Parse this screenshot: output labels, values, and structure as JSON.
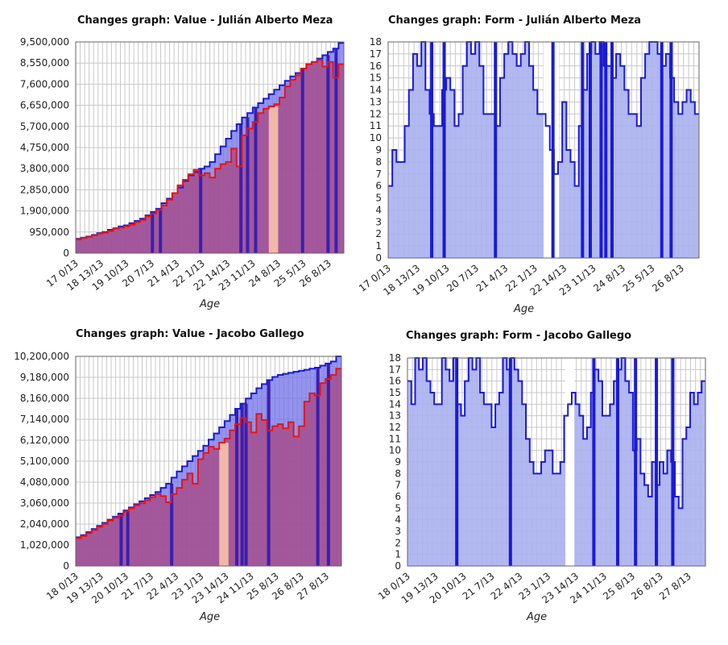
{
  "chart_data": [
    {
      "type": "area",
      "title": "Changes graph: Value - Julián Alberto Meza",
      "xlabel": "Age",
      "ylabel": "",
      "ylim": [
        0,
        9500000
      ],
      "yticks": [
        "9,500,000",
        "8,550,000",
        "7,600,000",
        "6,650,000",
        "5,700,000",
        "4,750,000",
        "3,800,000",
        "2,850,000",
        "1,900,000",
        "950,000",
        "0"
      ],
      "xticks": [
        "17 0/13",
        "18 13/13",
        "19 10/13",
        "20 7/13",
        "21 4/13",
        "22 1/13",
        "22 14/13",
        "23 11/13",
        "24 8/13",
        "25 5/13",
        "26 8/13"
      ],
      "grid": true,
      "colors": {
        "series1": "#1a1ad6",
        "series2": "#e81414",
        "fill": "#a64d8c",
        "gap_fill": "#f0b8a8",
        "drop": "#3a1fb0"
      },
      "series": [
        {
          "values": [
            650000,
            700000,
            750000,
            820000,
            900000,
            950000,
            1050000,
            1120000,
            1200000,
            1250000,
            1350000,
            1450000,
            1550000,
            1700000,
            1850000,
            2000000,
            2250000,
            2450000,
            2700000,
            2950000,
            3250000,
            3500000,
            3650000,
            3800000,
            3900000,
            4100000,
            4450000,
            4800000,
            5150000,
            5500000,
            5800000,
            6100000,
            6300000,
            6550000,
            6750000,
            6950000,
            7150000,
            7350000,
            7550000,
            7750000,
            7950000,
            8100000,
            8300000,
            8500000,
            8600000,
            8750000,
            8900000,
            9050000,
            9200000,
            9450000
          ]
        },
        {
          "values": [
            620000,
            680000,
            730000,
            800000,
            880000,
            920000,
            1000000,
            1100000,
            1150000,
            1200000,
            1280000,
            1400000,
            1480000,
            1650000,
            1780000,
            1950000,
            2150000,
            2400000,
            2700000,
            3050000,
            3300000,
            3550000,
            3750000,
            3500000,
            3600000,
            3400000,
            3800000,
            4000000,
            4100000,
            4700000,
            3900000,
            5300000,
            5600000,
            5900000,
            6300000,
            6500000,
            6600000,
            6700000,
            7000000,
            7500000,
            7800000,
            8000000,
            8300000,
            8500000,
            8600000,
            8700000,
            8400000,
            8600000,
            7900000,
            8500000
          ]
        }
      ],
      "drops": [
        0.28,
        0.31,
        0.46,
        0.61,
        0.635,
        0.665,
        0.84,
        0.935,
        0.965
      ]
    },
    {
      "type": "area",
      "title": "Changes graph: Form - Julián Alberto Meza",
      "xlabel": "Age",
      "ylabel": "",
      "ylim": [
        0,
        18
      ],
      "yticks": [
        "18",
        "17",
        "16",
        "15",
        "14",
        "13",
        "12",
        "11",
        "10",
        "9",
        "8",
        "7",
        "6",
        "5",
        "4",
        "3",
        "2",
        "1",
        "0"
      ],
      "xticks": [
        "17 0/13",
        "18 13/13",
        "19 10/13",
        "20 7/13",
        "21 4/13",
        "22 1/13",
        "22 14/13",
        "23 11/13",
        "24 8/13",
        "25 5/13",
        "26 8/13"
      ],
      "grid": true,
      "colors": {
        "series1": "#1a1ad6",
        "fill": "#aab0ee"
      },
      "series": [
        {
          "values": [
            6,
            9,
            8,
            8,
            11,
            14,
            17,
            16,
            18,
            14,
            12,
            11,
            11,
            14,
            15,
            14,
            11,
            12,
            16,
            18,
            17,
            18,
            16,
            12,
            12,
            12,
            11,
            15,
            17,
            18,
            17,
            16,
            17,
            18,
            16,
            14,
            12,
            12,
            11,
            9,
            7,
            8,
            13,
            9,
            8,
            6,
            11,
            14,
            17,
            18,
            17,
            18,
            16,
            16,
            15,
            17,
            16,
            14,
            12,
            12,
            11,
            15,
            17,
            18,
            18,
            17,
            16,
            17,
            15,
            13,
            12,
            13,
            14,
            13,
            12
          ]
        }
      ],
      "drops": [
        0.135,
        0.175,
        0.34,
        0.525,
        0.62,
        0.645,
        0.68,
        0.695,
        0.715,
        0.875,
        0.905
      ],
      "gaps": [
        [
          0.5,
          0.55
        ]
      ]
    },
    {
      "type": "area",
      "title": "Changes graph: Value - Jacobo Gallego",
      "xlabel": "Age",
      "ylabel": "",
      "ylim": [
        0,
        10200000
      ],
      "yticks": [
        "10,200,000",
        "9,180,000",
        "8,160,000",
        "7,140,000",
        "6,120,000",
        "5,100,000",
        "4,080,000",
        "3,060,000",
        "2,040,000",
        "1,020,000",
        "0"
      ],
      "xticks": [
        "18 0/13",
        "19 13/13",
        "20 10/13",
        "21 7/13",
        "22 4/13",
        "23 1/13",
        "23 14/13",
        "24 11/13",
        "25 8/13",
        "26 8/13",
        "27 8/13"
      ],
      "grid": true,
      "colors": {
        "series1": "#1a1ad6",
        "series2": "#e81414",
        "fill": "#a64d8c",
        "gap_fill": "#f0b8a8",
        "drop": "#3a1fb0"
      },
      "series": [
        {
          "values": [
            1400000,
            1500000,
            1650000,
            1800000,
            1950000,
            2100000,
            2250000,
            2400000,
            2550000,
            2700000,
            2850000,
            3000000,
            3150000,
            3300000,
            3450000,
            3600000,
            3800000,
            4000000,
            4300000,
            4600000,
            4850000,
            5100000,
            5350000,
            5600000,
            5850000,
            6150000,
            6450000,
            6750000,
            7050000,
            7350000,
            7650000,
            7900000,
            8150000,
            8400000,
            8650000,
            8850000,
            9050000,
            9200000,
            9300000,
            9350000,
            9400000,
            9450000,
            9500000,
            9550000,
            9600000,
            9650000,
            9750000,
            9850000,
            9950000,
            10200000
          ]
        },
        {
          "values": [
            1350000,
            1450000,
            1600000,
            1750000,
            1900000,
            2050000,
            2200000,
            2350000,
            2450000,
            2650000,
            2800000,
            2950000,
            3050000,
            3200000,
            3350000,
            3500000,
            3400000,
            3100000,
            3500000,
            3800000,
            4200000,
            4500000,
            4000000,
            5200000,
            5500000,
            5800000,
            5700000,
            6000000,
            6200000,
            6600000,
            6900000,
            7200000,
            7000000,
            6500000,
            7400000,
            7100000,
            6600000,
            6800000,
            6900000,
            6700000,
            7000000,
            6300000,
            6800000,
            8000000,
            8400000,
            8300000,
            8900000,
            9100000,
            9300000,
            9600000
          ]
        }
      ],
      "drops": [
        0.165,
        0.19,
        0.355,
        0.6,
        0.62,
        0.635,
        0.72,
        0.905,
        0.945
      ]
    },
    {
      "type": "area",
      "title": "Changes graph: Form - Jacobo Gallego",
      "xlabel": "Age",
      "ylabel": "",
      "ylim": [
        0,
        18
      ],
      "yticks": [
        "18",
        "17",
        "16",
        "15",
        "14",
        "13",
        "12",
        "11",
        "10",
        "9",
        "8",
        "7",
        "6",
        "5",
        "4",
        "3",
        "2",
        "1",
        "0"
      ],
      "xticks": [
        "18 0/13",
        "19 13/13",
        "20 10/13",
        "21 7/13",
        "22 4/13",
        "23 1/13",
        "23 14/13",
        "24 11/13",
        "25 8/13",
        "26 8/13",
        "27 8/13"
      ],
      "grid": true,
      "colors": {
        "series1": "#1a1ad6",
        "fill": "#aab0ee"
      },
      "series": [
        {
          "values": [
            16,
            14,
            18,
            17,
            18,
            16,
            15,
            14,
            14,
            18,
            17,
            16,
            18,
            14,
            13,
            16,
            18,
            17,
            18,
            15,
            14,
            14,
            12,
            14,
            15,
            18,
            17,
            18,
            17,
            16,
            14,
            11,
            9,
            8,
            8,
            9,
            10,
            10,
            8,
            8,
            9,
            13,
            14,
            15,
            14,
            13,
            11,
            12,
            15,
            17,
            16,
            13,
            13,
            14,
            16,
            17,
            18,
            16,
            15,
            10,
            11,
            8,
            7,
            6,
            9,
            7,
            9,
            8,
            10,
            9,
            6,
            5,
            11,
            12,
            15,
            14,
            15,
            16
          ]
        }
      ],
      "drops": [
        0.16,
        0.34,
        0.62,
        0.7,
        0.76,
        0.83,
        0.885
      ],
      "gaps": [
        [
          0.53,
          0.56
        ]
      ]
    }
  ]
}
